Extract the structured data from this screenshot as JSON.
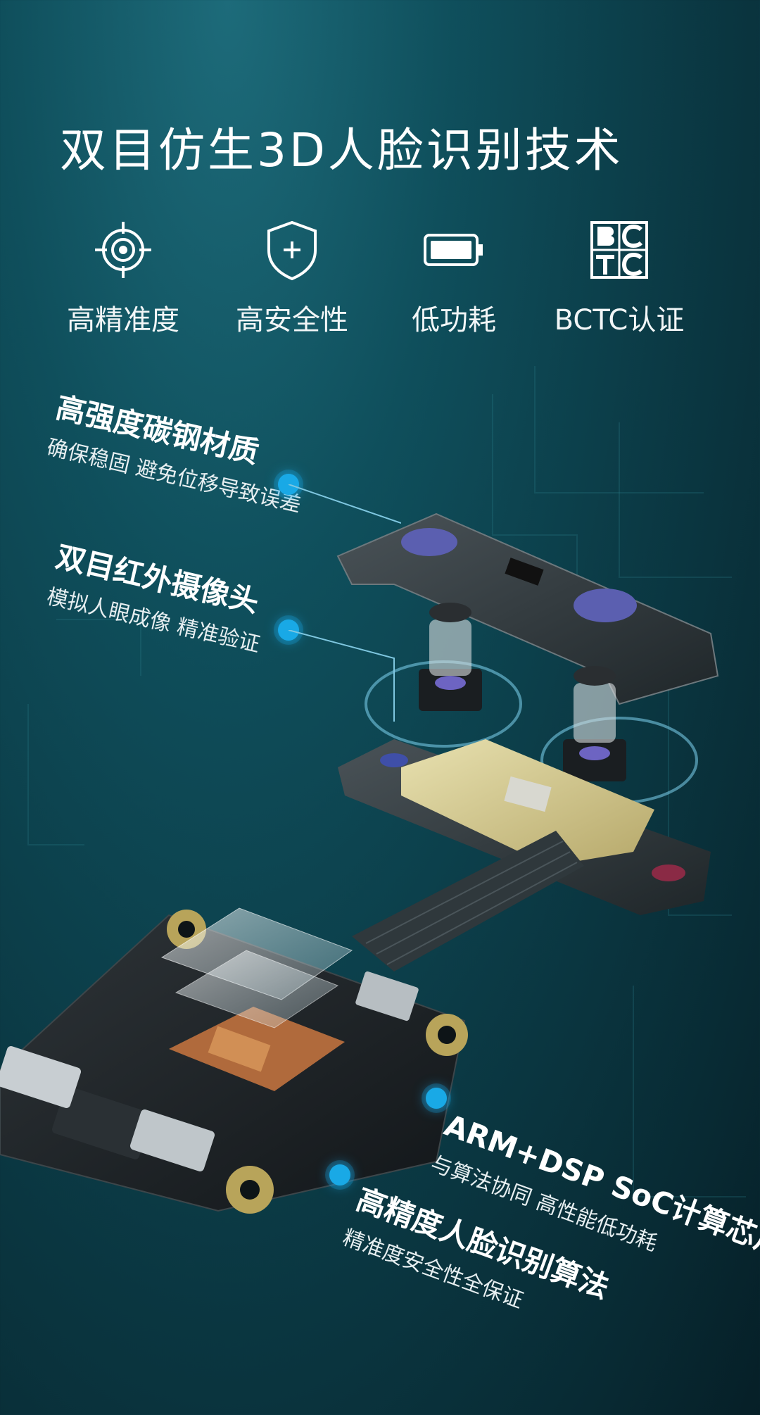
{
  "title": "双目仿生3D人脸识别技术",
  "features": [
    {
      "icon": "target-icon",
      "label": "高精准度"
    },
    {
      "icon": "shield-plus-icon",
      "label": "高安全性"
    },
    {
      "icon": "battery-icon",
      "label": "低功耗"
    },
    {
      "icon": "bctc-logo-icon",
      "label": "BCTC认证"
    }
  ],
  "callouts": [
    {
      "heading": "高强度碳钢材质",
      "sub": "确保稳固 避免位移导致误差"
    },
    {
      "heading": "双目红外摄像头",
      "sub": "模拟人眼成像 精准验证"
    },
    {
      "heading": "ARM+DSP SoC计算芯片",
      "sub": "与算法协同 高性能低功耗"
    },
    {
      "heading": "高精度人脸识别算法",
      "sub": "精准度安全性全保证"
    }
  ],
  "colors": {
    "accent": "#19a9e6",
    "background": "#0b3a45"
  }
}
